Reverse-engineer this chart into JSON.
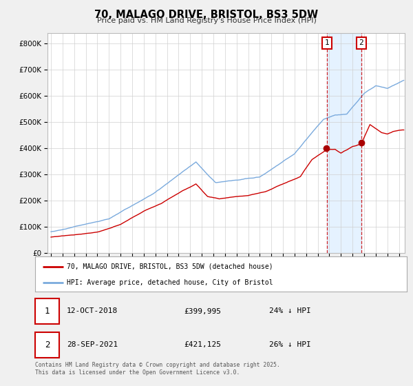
{
  "title": "70, MALAGO DRIVE, BRISTOL, BS3 5DW",
  "subtitle": "Price paid vs. HM Land Registry's House Price Index (HPI)",
  "legend_label_red": "70, MALAGO DRIVE, BRISTOL, BS3 5DW (detached house)",
  "legend_label_blue": "HPI: Average price, detached house, City of Bristol",
  "annotation1_date": "12-OCT-2018",
  "annotation1_price": "£399,995",
  "annotation1_hpi": "24% ↓ HPI",
  "annotation1_year": 2018.79,
  "annotation1_value": 399995,
  "annotation2_date": "28-SEP-2021",
  "annotation2_price": "£421,125",
  "annotation2_hpi": "26% ↓ HPI",
  "annotation2_year": 2021.75,
  "annotation2_value": 421125,
  "footer": "Contains HM Land Registry data © Crown copyright and database right 2025.\nThis data is licensed under the Open Government Licence v3.0.",
  "ylim": [
    0,
    840000
  ],
  "yticks": [
    0,
    100000,
    200000,
    300000,
    400000,
    500000,
    600000,
    700000,
    800000
  ],
  "xlim_start": 1994.7,
  "xlim_end": 2025.5,
  "fig_bg": "#f0f0f0",
  "plot_bg": "#ffffff",
  "grid_color": "#d0d0d0",
  "red_color": "#cc0000",
  "blue_color": "#7aaadd",
  "shade_color": "#ddeeff",
  "marker_color": "#aa0000"
}
